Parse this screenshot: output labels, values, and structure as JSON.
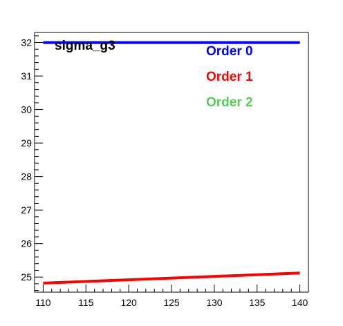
{
  "chart_data": {
    "type": "line",
    "title": "sigma_g3",
    "xlabel": "",
    "ylabel": "",
    "xlim": [
      109,
      141
    ],
    "ylim": [
      24.55,
      32.3
    ],
    "x_ticks": [
      110,
      115,
      120,
      125,
      130,
      135,
      140
    ],
    "y_ticks": [
      25,
      26,
      27,
      28,
      29,
      30,
      31,
      32
    ],
    "grid": false,
    "legend_position": "top-right",
    "series": [
      {
        "name": "Order 0",
        "color": "#0000ff",
        "x": [
          110,
          140
        ],
        "y": [
          32.0,
          32.0
        ]
      },
      {
        "name": "Order 1",
        "color": "#ff0000",
        "x": [
          110,
          140
        ],
        "y": [
          24.82,
          25.12
        ]
      },
      {
        "name": "Order 2",
        "color": "#55cc55",
        "x": [],
        "y": []
      }
    ]
  }
}
